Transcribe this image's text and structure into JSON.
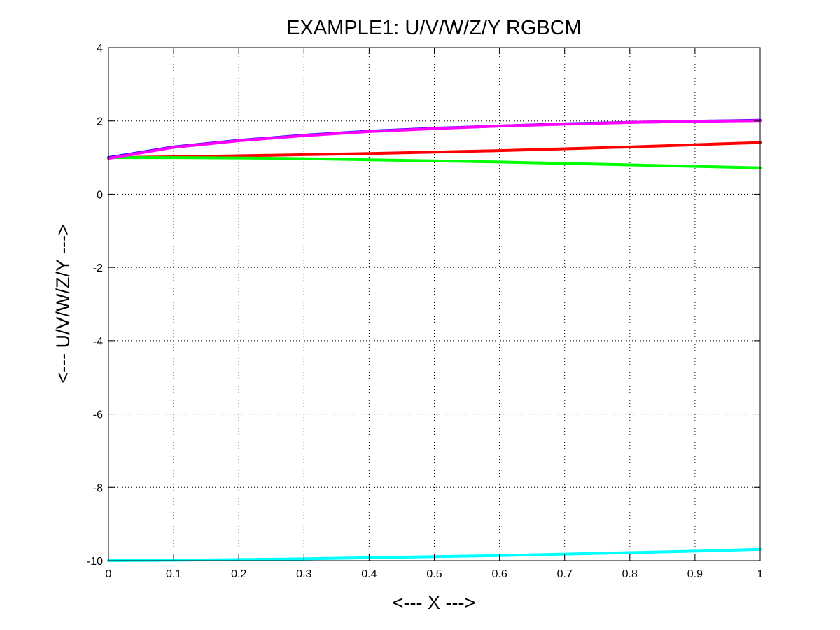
{
  "chart_data": {
    "type": "line",
    "title": "EXAMPLE1: U/V/W/Z/Y RGBCM",
    "xlabel": "<--- X --->",
    "ylabel": "<--- U/V/W/Z/Y --->",
    "xlim": [
      0,
      1
    ],
    "ylim": [
      -10,
      4
    ],
    "grid": true,
    "x_ticks": [
      "0",
      "0.1",
      "0.2",
      "0.3",
      "0.4",
      "0.5",
      "0.6",
      "0.7",
      "0.8",
      "0.9",
      "1"
    ],
    "y_ticks": [
      "4",
      "2",
      "0",
      "-2",
      "-4",
      "-6",
      "-8",
      "-10"
    ],
    "x": [
      0,
      0.1,
      0.2,
      0.3,
      0.4,
      0.5,
      0.6,
      0.7,
      0.8,
      0.9,
      1.0
    ],
    "series": [
      {
        "color": "#ff0000",
        "values": [
          1.0,
          1.02,
          1.05,
          1.08,
          1.11,
          1.15,
          1.19,
          1.24,
          1.29,
          1.35,
          1.41
        ]
      },
      {
        "color": "#00ff00",
        "values": [
          1.0,
          1.0,
          0.99,
          0.97,
          0.94,
          0.91,
          0.88,
          0.84,
          0.8,
          0.76,
          0.72
        ]
      },
      {
        "color": "#0000ff",
        "values": [
          1.0,
          1.29,
          1.47,
          1.61,
          1.72,
          1.8,
          1.86,
          1.92,
          1.96,
          1.99,
          2.02
        ]
      },
      {
        "color": "#00ffff",
        "values": [
          -10.0,
          -9.99,
          -9.97,
          -9.95,
          -9.92,
          -9.89,
          -9.86,
          -9.82,
          -9.78,
          -9.74,
          -9.69
        ]
      },
      {
        "color": "#ff00ff",
        "values": [
          0.98,
          1.28,
          1.46,
          1.6,
          1.71,
          1.79,
          1.86,
          1.91,
          1.96,
          1.99,
          2.01
        ]
      }
    ]
  }
}
